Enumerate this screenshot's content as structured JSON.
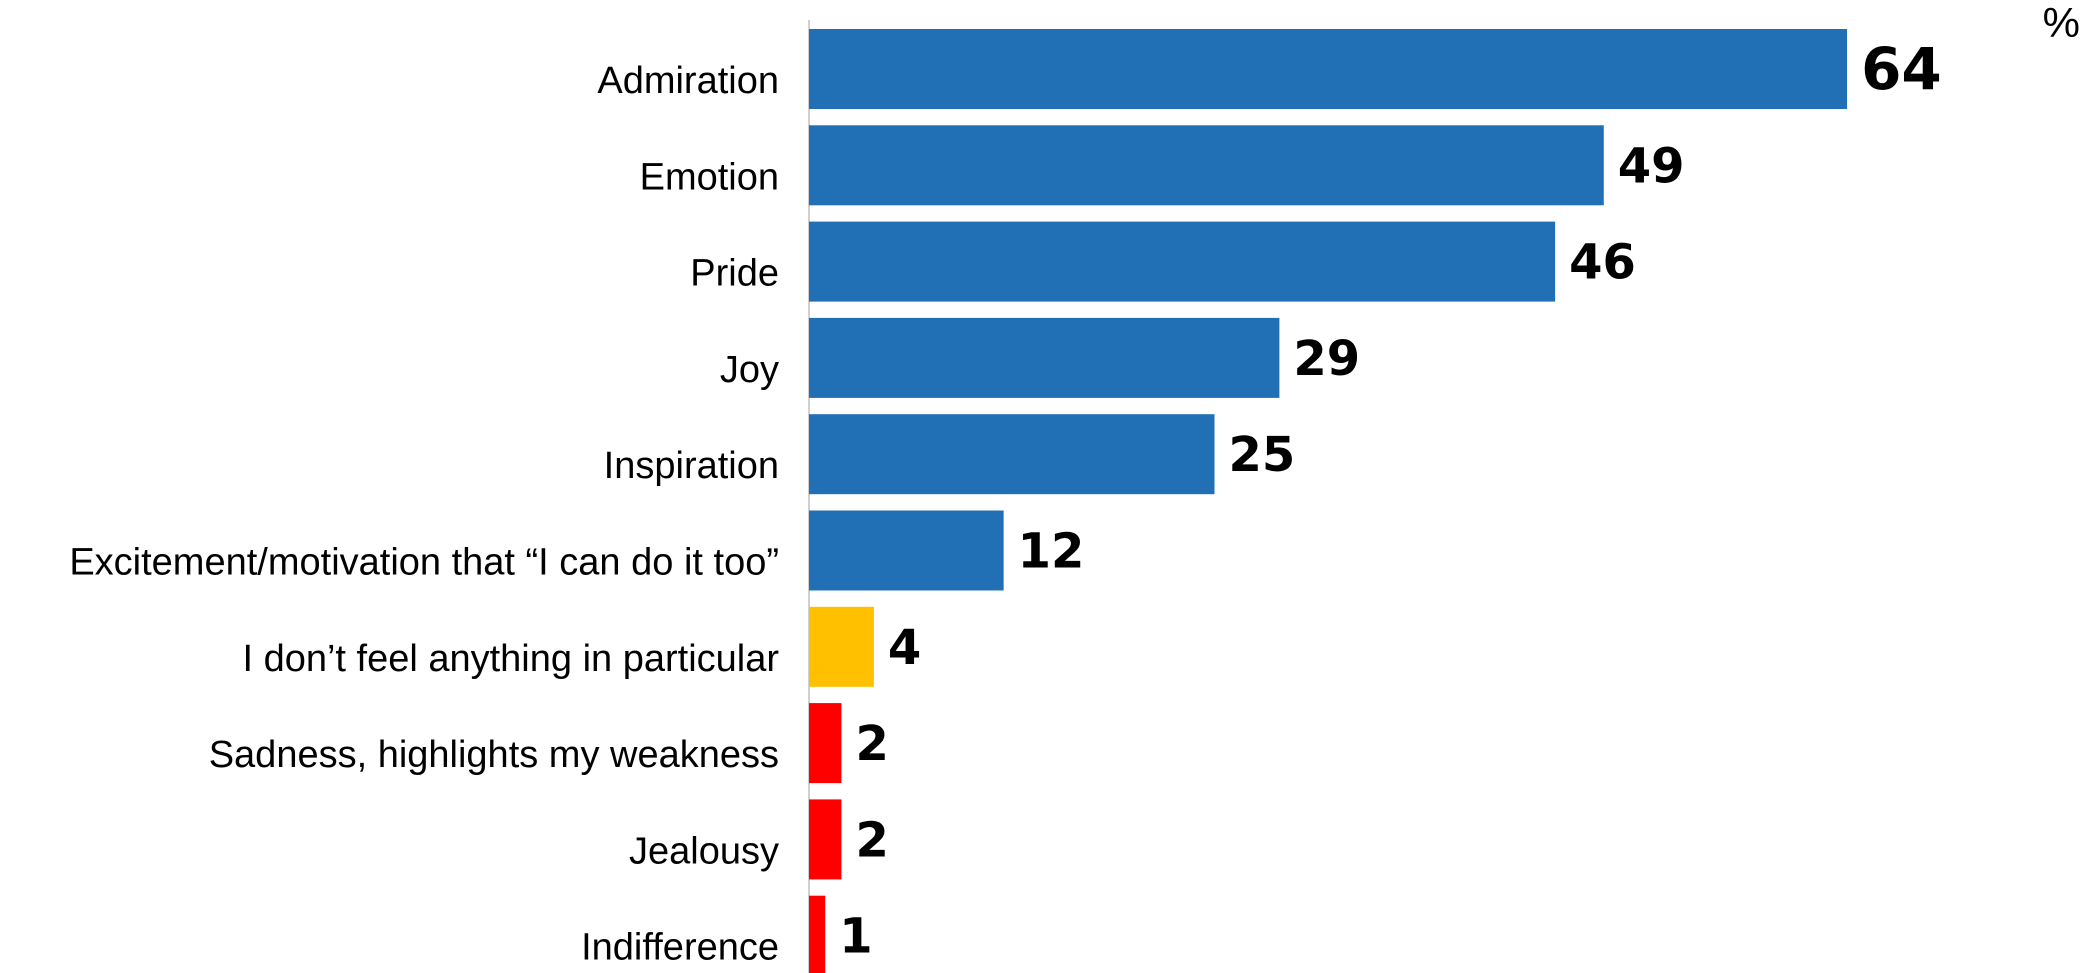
{
  "chart_data": {
    "type": "bar",
    "orientation": "horizontal",
    "unit_label": "%",
    "categories": [
      "Admiration",
      "Emotion",
      "Pride",
      "Joy",
      "Inspiration",
      "Excitement/motivation that “I can do it too”",
      "I don’t feel anything in particular",
      "Sadness, highlights my weakness",
      "Jealousy",
      "Indifference"
    ],
    "values": [
      64,
      49,
      46,
      29,
      25,
      12,
      4,
      2,
      2,
      1
    ],
    "colors": [
      "#2170b5",
      "#2170b5",
      "#2170b5",
      "#2170b5",
      "#2170b5",
      "#2170b5",
      "#ffc000",
      "#ff0000",
      "#ff0000",
      "#ff0000"
    ]
  }
}
